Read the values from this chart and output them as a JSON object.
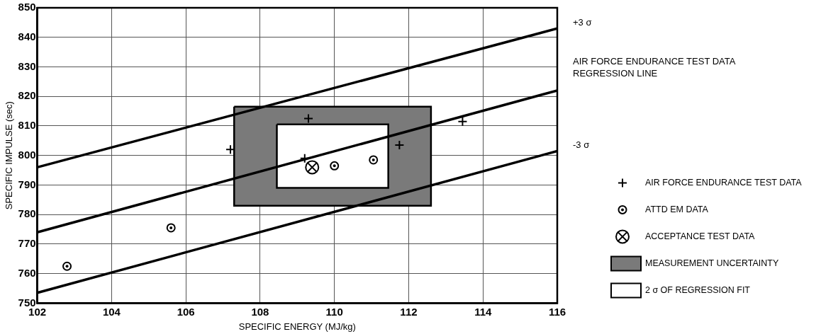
{
  "chart_data": {
    "type": "scatter",
    "xlabel": "SPECIFIC ENERGY (MJ/kg)",
    "ylabel": "SPECIFIC IMPULSE (sec)",
    "xlim": [
      102,
      116
    ],
    "xticks": [
      102,
      104,
      106,
      108,
      110,
      112,
      114,
      116
    ],
    "ylim": [
      750,
      850
    ],
    "yticks": [
      750,
      760,
      770,
      780,
      790,
      800,
      810,
      820,
      830,
      840,
      850
    ],
    "grid": true,
    "legend": "right",
    "series": [
      {
        "name": "MEASUREMENT UNCERTAINTY",
        "type": "area",
        "color": "#7a7a7a",
        "x": [
          107.3,
          112.6,
          112.6,
          107.3,
          107.3
        ],
        "values": [
          816.5,
          816.5,
          783,
          783,
          816.5
        ]
      },
      {
        "name": "2 σ OF REGRESSION FIT",
        "type": "area",
        "color": "#ffffff",
        "x": [
          108.45,
          111.45,
          111.45,
          108.45,
          108.45
        ],
        "values": [
          810.5,
          810.5,
          789,
          789,
          810.5
        ]
      },
      {
        "name": "+3 σ",
        "type": "line",
        "color": "#000000",
        "x": [
          102,
          116
        ],
        "values": [
          796,
          843
        ]
      },
      {
        "name": "AIR FORCE ENDURANCE TEST DATA\nREGRESSION LINE",
        "type": "line",
        "color": "#000000",
        "x": [
          102,
          116
        ],
        "values": [
          774,
          822
        ]
      },
      {
        "name": "-3 σ",
        "type": "line",
        "color": "#000000",
        "x": [
          102,
          116
        ],
        "values": [
          753.5,
          801.5
        ]
      },
      {
        "name": "AIR FORCE ENDURANCE TEST DATA",
        "marker": "cross",
        "color": "#000000",
        "x": [
          107.2,
          109.2,
          109.3,
          111.75,
          113.45
        ],
        "values": [
          802,
          799,
          812.5,
          803.5,
          811.5
        ]
      },
      {
        "name": "ATTD EM DATA",
        "marker": "circle",
        "color": "#000000",
        "x": [
          102.8,
          105.6,
          110,
          111.05
        ],
        "values": [
          762.5,
          775.5,
          796.5,
          798.5
        ]
      },
      {
        "name": "ACCEPTANCE TEST DATA",
        "marker": "circle-cross",
        "color": "#000000",
        "x": [
          109.4
        ],
        "values": [
          796
        ]
      }
    ]
  }
}
